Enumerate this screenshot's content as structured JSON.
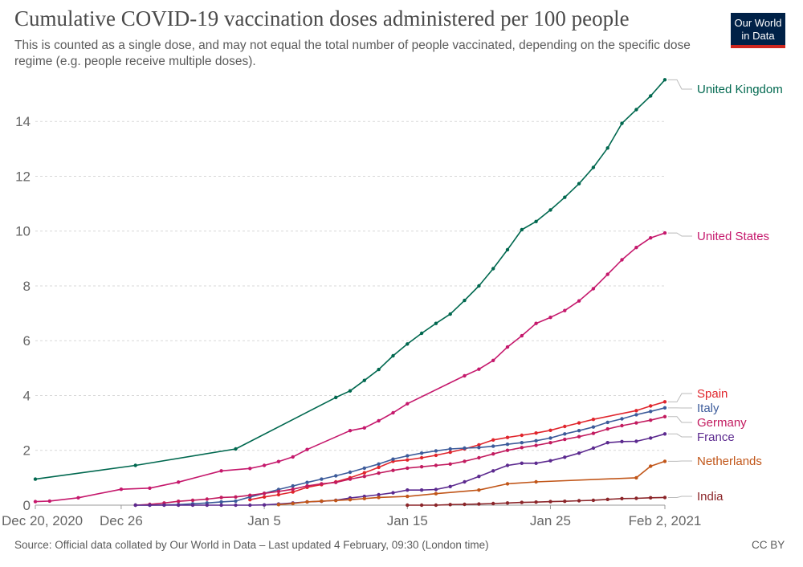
{
  "header": {
    "title": "Cumulative COVID-19 vaccination doses administered per 100 people",
    "subtitle": "This is counted as a single dose, and may not equal the total number of people vaccinated, depending on the specific dose regime (e.g. people receive multiple doses).",
    "logo_line1": "Our World",
    "logo_line2": "in Data"
  },
  "footer": {
    "source": "Source: Official data collated by Our World in Data – Last updated 4 February, 09:30 (London time)",
    "license": "CC BY"
  },
  "chart_data": {
    "type": "line",
    "title": "Cumulative COVID-19 vaccination doses administered per 100 people",
    "xlabel": "",
    "ylabel": "",
    "x_start": "2020-12-20",
    "x_end": "2021-02-02",
    "x_ticks": [
      {
        "date": "2020-12-20",
        "label": "Dec 20, 2020"
      },
      {
        "date": "2020-12-26",
        "label": "Dec 26"
      },
      {
        "date": "2021-01-05",
        "label": "Jan 5"
      },
      {
        "date": "2021-01-15",
        "label": "Jan 15"
      },
      {
        "date": "2021-01-25",
        "label": "Jan 25"
      },
      {
        "date": "2021-02-02",
        "label": "Feb 2, 2021"
      }
    ],
    "ylim": [
      0,
      15.5
    ],
    "y_ticks": [
      0,
      2,
      4,
      6,
      8,
      10,
      12,
      14
    ],
    "grid": true,
    "legend": "labels at right end of lines",
    "series": [
      {
        "name": "United Kingdom",
        "color": "#00684f",
        "points": [
          [
            "2020-12-20",
            0.95
          ],
          [
            "2020-12-27",
            1.45
          ],
          [
            "2021-01-03",
            2.05
          ],
          [
            "2021-01-10",
            3.93
          ],
          [
            "2021-01-11",
            4.17
          ],
          [
            "2021-01-12",
            4.55
          ],
          [
            "2021-01-13",
            4.95
          ],
          [
            "2021-01-14",
            5.45
          ],
          [
            "2021-01-15",
            5.88
          ],
          [
            "2021-01-16",
            6.27
          ],
          [
            "2021-01-17",
            6.63
          ],
          [
            "2021-01-18",
            6.97
          ],
          [
            "2021-01-19",
            7.47
          ],
          [
            "2021-01-20",
            8.0
          ],
          [
            "2021-01-21",
            8.63
          ],
          [
            "2021-01-22",
            9.32
          ],
          [
            "2021-01-23",
            10.05
          ],
          [
            "2021-01-24",
            10.35
          ],
          [
            "2021-01-25",
            10.77
          ],
          [
            "2021-01-26",
            11.23
          ],
          [
            "2021-01-27",
            11.73
          ],
          [
            "2021-01-28",
            12.32
          ],
          [
            "2021-01-29",
            13.03
          ],
          [
            "2021-01-30",
            13.93
          ],
          [
            "2021-01-31",
            14.43
          ],
          [
            "2021-02-01",
            14.93
          ],
          [
            "2021-02-02",
            15.52
          ]
        ]
      },
      {
        "name": "United States",
        "color": "#c5186c",
        "points": [
          [
            "2020-12-20",
            0.13
          ],
          [
            "2020-12-21",
            0.15
          ],
          [
            "2020-12-23",
            0.27
          ],
          [
            "2020-12-26",
            0.58
          ],
          [
            "2020-12-28",
            0.62
          ],
          [
            "2020-12-30",
            0.84
          ],
          [
            "2021-01-02",
            1.25
          ],
          [
            "2021-01-04",
            1.34
          ],
          [
            "2021-01-05",
            1.45
          ],
          [
            "2021-01-06",
            1.59
          ],
          [
            "2021-01-07",
            1.76
          ],
          [
            "2021-01-08",
            2.03
          ],
          [
            "2021-01-11",
            2.72
          ],
          [
            "2021-01-12",
            2.82
          ],
          [
            "2021-01-13",
            3.08
          ],
          [
            "2021-01-14",
            3.37
          ],
          [
            "2021-01-15",
            3.7
          ],
          [
            "2021-01-19",
            4.72
          ],
          [
            "2021-01-20",
            4.96
          ],
          [
            "2021-01-21",
            5.28
          ],
          [
            "2021-01-22",
            5.77
          ],
          [
            "2021-01-23",
            6.18
          ],
          [
            "2021-01-24",
            6.63
          ],
          [
            "2021-01-25",
            6.85
          ],
          [
            "2021-01-26",
            7.1
          ],
          [
            "2021-01-27",
            7.45
          ],
          [
            "2021-01-28",
            7.9
          ],
          [
            "2021-01-29",
            8.42
          ],
          [
            "2021-01-30",
            8.95
          ],
          [
            "2021-01-31",
            9.4
          ],
          [
            "2021-02-01",
            9.75
          ],
          [
            "2021-02-02",
            9.93
          ]
        ]
      },
      {
        "name": "Spain",
        "color": "#e0252c",
        "points": [
          [
            "2021-01-04",
            0.2
          ],
          [
            "2021-01-05",
            0.3
          ],
          [
            "2021-01-06",
            0.38
          ],
          [
            "2021-01-07",
            0.48
          ],
          [
            "2021-01-08",
            0.65
          ],
          [
            "2021-01-09",
            0.75
          ],
          [
            "2021-01-10",
            0.85
          ],
          [
            "2021-01-11",
            1.0
          ],
          [
            "2021-01-12",
            1.18
          ],
          [
            "2021-01-13",
            1.38
          ],
          [
            "2021-01-14",
            1.6
          ],
          [
            "2021-01-15",
            1.65
          ],
          [
            "2021-01-16",
            1.73
          ],
          [
            "2021-01-17",
            1.82
          ],
          [
            "2021-01-18",
            1.93
          ],
          [
            "2021-01-19",
            2.05
          ],
          [
            "2021-01-20",
            2.2
          ],
          [
            "2021-01-21",
            2.38
          ],
          [
            "2021-01-22",
            2.47
          ],
          [
            "2021-01-23",
            2.55
          ],
          [
            "2021-01-24",
            2.63
          ],
          [
            "2021-01-25",
            2.73
          ],
          [
            "2021-01-26",
            2.87
          ],
          [
            "2021-01-27",
            3.0
          ],
          [
            "2021-01-28",
            3.13
          ],
          [
            "2021-01-31",
            3.45
          ],
          [
            "2021-02-01",
            3.62
          ],
          [
            "2021-02-02",
            3.77
          ]
        ]
      },
      {
        "name": "Italy",
        "color": "#3c5b9a",
        "points": [
          [
            "2020-12-27",
            0.0
          ],
          [
            "2020-12-28",
            0.0
          ],
          [
            "2020-12-29",
            0.01
          ],
          [
            "2020-12-30",
            0.02
          ],
          [
            "2020-12-31",
            0.05
          ],
          [
            "2021-01-01",
            0.08
          ],
          [
            "2021-01-02",
            0.12
          ],
          [
            "2021-01-03",
            0.15
          ],
          [
            "2021-01-04",
            0.3
          ],
          [
            "2021-01-05",
            0.43
          ],
          [
            "2021-01-06",
            0.57
          ],
          [
            "2021-01-07",
            0.7
          ],
          [
            "2021-01-08",
            0.83
          ],
          [
            "2021-01-09",
            0.95
          ],
          [
            "2021-01-10",
            1.07
          ],
          [
            "2021-01-11",
            1.2
          ],
          [
            "2021-01-12",
            1.35
          ],
          [
            "2021-01-13",
            1.5
          ],
          [
            "2021-01-14",
            1.68
          ],
          [
            "2021-01-15",
            1.8
          ],
          [
            "2021-01-16",
            1.9
          ],
          [
            "2021-01-17",
            1.98
          ],
          [
            "2021-01-18",
            2.05
          ],
          [
            "2021-01-19",
            2.08
          ],
          [
            "2021-01-20",
            2.1
          ],
          [
            "2021-01-21",
            2.15
          ],
          [
            "2021-01-22",
            2.22
          ],
          [
            "2021-01-23",
            2.28
          ],
          [
            "2021-01-24",
            2.35
          ],
          [
            "2021-01-25",
            2.45
          ],
          [
            "2021-01-26",
            2.6
          ],
          [
            "2021-01-27",
            2.72
          ],
          [
            "2021-01-28",
            2.85
          ],
          [
            "2021-01-29",
            3.02
          ],
          [
            "2021-01-30",
            3.15
          ],
          [
            "2021-01-31",
            3.3
          ],
          [
            "2021-02-01",
            3.42
          ],
          [
            "2021-02-02",
            3.55
          ]
        ]
      },
      {
        "name": "Germany",
        "color": "#c21b5f",
        "points": [
          [
            "2020-12-27",
            0.0
          ],
          [
            "2020-12-28",
            0.03
          ],
          [
            "2020-12-29",
            0.08
          ],
          [
            "2020-12-30",
            0.14
          ],
          [
            "2020-12-31",
            0.18
          ],
          [
            "2021-01-01",
            0.22
          ],
          [
            "2021-01-02",
            0.28
          ],
          [
            "2021-01-03",
            0.3
          ],
          [
            "2021-01-04",
            0.36
          ],
          [
            "2021-01-05",
            0.43
          ],
          [
            "2021-01-06",
            0.5
          ],
          [
            "2021-01-07",
            0.58
          ],
          [
            "2021-01-08",
            0.7
          ],
          [
            "2021-01-09",
            0.78
          ],
          [
            "2021-01-10",
            0.83
          ],
          [
            "2021-01-11",
            0.95
          ],
          [
            "2021-01-12",
            1.05
          ],
          [
            "2021-01-13",
            1.17
          ],
          [
            "2021-01-14",
            1.27
          ],
          [
            "2021-01-15",
            1.35
          ],
          [
            "2021-01-16",
            1.4
          ],
          [
            "2021-01-17",
            1.45
          ],
          [
            "2021-01-18",
            1.5
          ],
          [
            "2021-01-19",
            1.6
          ],
          [
            "2021-01-20",
            1.73
          ],
          [
            "2021-01-21",
            1.87
          ],
          [
            "2021-01-22",
            2.0
          ],
          [
            "2021-01-23",
            2.1
          ],
          [
            "2021-01-24",
            2.18
          ],
          [
            "2021-01-25",
            2.28
          ],
          [
            "2021-01-26",
            2.4
          ],
          [
            "2021-01-27",
            2.5
          ],
          [
            "2021-01-28",
            2.62
          ],
          [
            "2021-01-29",
            2.78
          ],
          [
            "2021-01-30",
            2.9
          ],
          [
            "2021-01-31",
            3.0
          ],
          [
            "2021-02-01",
            3.1
          ],
          [
            "2021-02-02",
            3.23
          ]
        ]
      },
      {
        "name": "France",
        "color": "#5c2a8f",
        "points": [
          [
            "2020-12-27",
            0.0
          ],
          [
            "2020-12-28",
            0.0
          ],
          [
            "2020-12-29",
            0.0
          ],
          [
            "2020-12-30",
            0.0
          ],
          [
            "2020-12-31",
            0.0
          ],
          [
            "2021-01-01",
            0.0
          ],
          [
            "2021-01-02",
            0.0
          ],
          [
            "2021-01-03",
            0.0
          ],
          [
            "2021-01-04",
            0.0
          ],
          [
            "2021-01-05",
            0.01
          ],
          [
            "2021-01-06",
            0.04
          ],
          [
            "2021-01-07",
            0.08
          ],
          [
            "2021-01-08",
            0.12
          ],
          [
            "2021-01-09",
            0.14
          ],
          [
            "2021-01-10",
            0.18
          ],
          [
            "2021-01-11",
            0.26
          ],
          [
            "2021-01-12",
            0.32
          ],
          [
            "2021-01-13",
            0.38
          ],
          [
            "2021-01-14",
            0.45
          ],
          [
            "2021-01-15",
            0.55
          ],
          [
            "2021-01-16",
            0.55
          ],
          [
            "2021-01-17",
            0.57
          ],
          [
            "2021-01-18",
            0.68
          ],
          [
            "2021-01-19",
            0.85
          ],
          [
            "2021-01-20",
            1.05
          ],
          [
            "2021-01-21",
            1.25
          ],
          [
            "2021-01-22",
            1.45
          ],
          [
            "2021-01-23",
            1.53
          ],
          [
            "2021-01-24",
            1.53
          ],
          [
            "2021-01-25",
            1.62
          ],
          [
            "2021-01-26",
            1.75
          ],
          [
            "2021-01-27",
            1.9
          ],
          [
            "2021-01-28",
            2.08
          ],
          [
            "2021-01-29",
            2.28
          ],
          [
            "2021-01-30",
            2.32
          ],
          [
            "2021-01-31",
            2.33
          ],
          [
            "2021-02-01",
            2.45
          ],
          [
            "2021-02-02",
            2.6
          ]
        ]
      },
      {
        "name": "Netherlands",
        "color": "#c15619",
        "points": [
          [
            "2021-01-06",
            0.02
          ],
          [
            "2021-01-07",
            0.06
          ],
          [
            "2021-01-08",
            0.12
          ],
          [
            "2021-01-09",
            0.15
          ],
          [
            "2021-01-10",
            0.17
          ],
          [
            "2021-01-11",
            0.2
          ],
          [
            "2021-01-12",
            0.24
          ],
          [
            "2021-01-13",
            0.28
          ],
          [
            "2021-01-15",
            0.32
          ],
          [
            "2021-01-17",
            0.42
          ],
          [
            "2021-01-20",
            0.55
          ],
          [
            "2021-01-22",
            0.78
          ],
          [
            "2021-01-24",
            0.85
          ],
          [
            "2021-01-31",
            1.0
          ],
          [
            "2021-02-01",
            1.42
          ],
          [
            "2021-02-02",
            1.6
          ]
        ]
      },
      {
        "name": "India",
        "color": "#8b2529",
        "points": [
          [
            "2021-01-15",
            0.0
          ],
          [
            "2021-01-16",
            0.0
          ],
          [
            "2021-01-17",
            0.0
          ],
          [
            "2021-01-18",
            0.02
          ],
          [
            "2021-01-19",
            0.03
          ],
          [
            "2021-01-20",
            0.04
          ],
          [
            "2021-01-21",
            0.06
          ],
          [
            "2021-01-22",
            0.08
          ],
          [
            "2021-01-23",
            0.1
          ],
          [
            "2021-01-24",
            0.11
          ],
          [
            "2021-01-25",
            0.13
          ],
          [
            "2021-01-26",
            0.14
          ],
          [
            "2021-01-27",
            0.16
          ],
          [
            "2021-01-28",
            0.18
          ],
          [
            "2021-01-29",
            0.21
          ],
          [
            "2021-01-30",
            0.24
          ],
          [
            "2021-01-31",
            0.25
          ],
          [
            "2021-02-01",
            0.27
          ],
          [
            "2021-02-02",
            0.28
          ]
        ]
      }
    ]
  }
}
